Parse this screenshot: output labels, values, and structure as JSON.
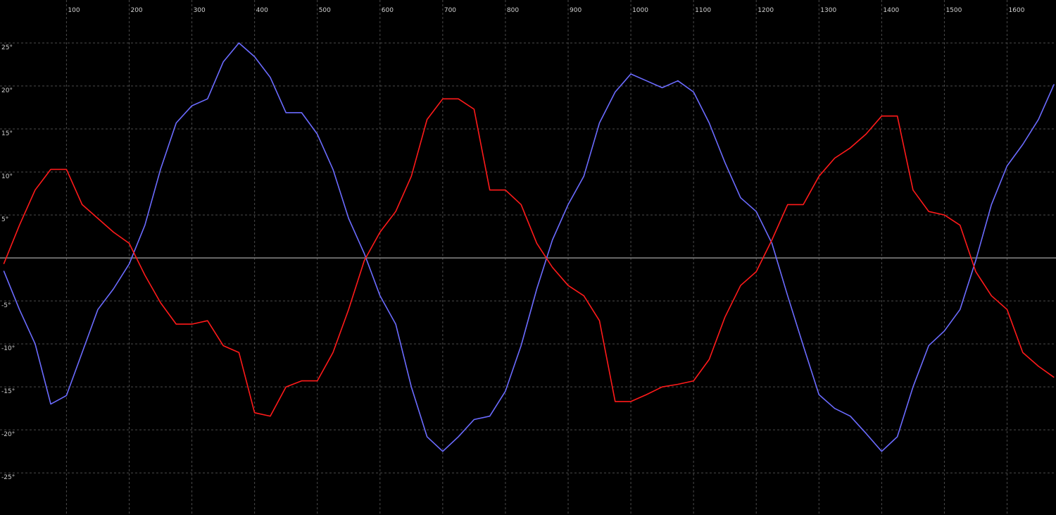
{
  "chart_data": {
    "type": "line",
    "x": [
      0,
      25,
      50,
      75,
      100,
      125,
      150,
      175,
      200,
      225,
      250,
      275,
      300,
      325,
      350,
      375,
      400,
      425,
      450,
      475,
      500,
      525,
      550,
      575,
      600,
      625,
      650,
      675,
      700,
      725,
      750,
      775,
      800,
      825,
      850,
      875,
      900,
      925,
      950,
      975,
      1000,
      1025,
      1050,
      1075,
      1100,
      1125,
      1150,
      1175,
      1200,
      1225,
      1250,
      1275,
      1300,
      1325,
      1350,
      1375,
      1400,
      1425,
      1450,
      1475,
      1500,
      1525,
      1550,
      1575,
      1600,
      1625,
      1650,
      1675
    ],
    "series": [
      {
        "color": "#6b6bff",
        "values": [
          -1.5,
          -6,
          -10,
          -17,
          -16,
          -11,
          -6,
          -3.6,
          -0.7,
          3.8,
          10.3,
          15.7,
          17.7,
          18.5,
          22.8,
          25,
          23.4,
          21,
          16.9,
          16.9,
          14.4,
          10.3,
          4.6,
          0.5,
          -4.4,
          -7.7,
          -15,
          -20.8,
          -22.5,
          -20.8,
          -18.8,
          -18.4,
          -15.5,
          -10.2,
          -3.6,
          2.1,
          6.2,
          9.5,
          15.7,
          19.3,
          21.4,
          20.6,
          19.8,
          20.6,
          19.3,
          15.7,
          11.1,
          7,
          5.4,
          1.7,
          -4.4,
          -10.2,
          -15.9,
          -17.5,
          -18.4,
          -20.4,
          -22.5,
          -20.8,
          -15,
          -10.2,
          -8.5,
          -6,
          -0.3,
          6.2,
          10.7,
          13.2,
          16.1,
          20.2
        ]
      },
      {
        "color": "#ff1a1a",
        "values": [
          -0.7,
          3.8,
          7.9,
          10.3,
          10.3,
          6.2,
          4.6,
          3,
          1.7,
          -2,
          -5.2,
          -7.7,
          -7.7,
          -7.3,
          -10.2,
          -11,
          -18,
          -18.4,
          -15,
          -14.3,
          -14.3,
          -11,
          -6,
          -0.3,
          3,
          5.4,
          9.5,
          16.1,
          18.5,
          18.5,
          17.3,
          7.9,
          7.9,
          6.2,
          1.7,
          -1.1,
          -3.2,
          -4.4,
          -7.3,
          -16.7,
          -16.7,
          -15.9,
          -15,
          -14.7,
          -14.3,
          -11.8,
          -6.9,
          -3.2,
          -1.6,
          2.1,
          6.2,
          6.2,
          9.5,
          11.6,
          12.8,
          14.4,
          16.5,
          16.5,
          7.9,
          5.4,
          5,
          3.8,
          -1.6,
          -4.4,
          -6,
          -11,
          -12.6,
          -13.9
        ]
      }
    ],
    "xlim": [
      -6,
      1678
    ],
    "ylim": [
      -29.9,
      30
    ],
    "xticks": [
      100,
      200,
      300,
      400,
      500,
      600,
      700,
      800,
      900,
      1000,
      1100,
      1200,
      1300,
      1400,
      1500,
      1600
    ],
    "yticks": [
      {
        "value": 25,
        "label": "25°"
      },
      {
        "value": 20,
        "label": "20°"
      },
      {
        "value": 15,
        "label": "15°"
      },
      {
        "value": 10,
        "label": "10°"
      },
      {
        "value": 5,
        "label": "5°"
      },
      {
        "value": -5,
        "label": "-5°"
      },
      {
        "value": -10,
        "label": "-10°"
      },
      {
        "value": -15,
        "label": "-15°"
      },
      {
        "value": -20,
        "label": "-20°"
      },
      {
        "value": -25,
        "label": "-25°"
      }
    ],
    "grid": true,
    "zero_line": true
  }
}
